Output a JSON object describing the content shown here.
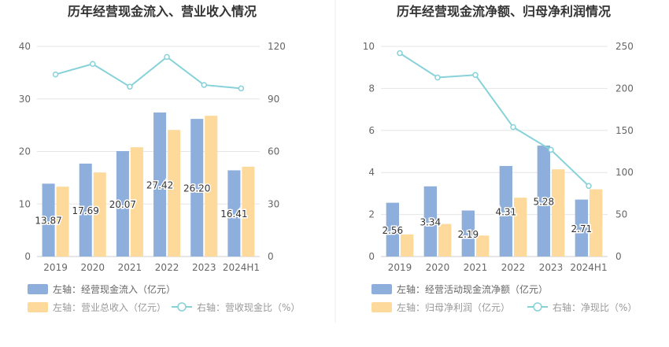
{
  "colors": {
    "bar1": "#8EAEDC",
    "bar2": "#FED99C",
    "line": "#86D2D8",
    "grid": "#E6E6E6",
    "axis_text": "#666666",
    "title": "#333333",
    "divider": "#EEEEEE"
  },
  "chart_data": [
    {
      "type": "bar",
      "title": "历年经营现金流入、营业收入情况",
      "categories": [
        "2019",
        "2020",
        "2021",
        "2022",
        "2023",
        "2024H1"
      ],
      "yleft": {
        "ticks": [
          "0",
          "10",
          "20",
          "30",
          "40"
        ],
        "range": [
          0,
          40
        ]
      },
      "yright": {
        "ticks": [
          "0",
          "30",
          "60",
          "90",
          "120"
        ],
        "range": [
          0,
          120
        ]
      },
      "series": [
        {
          "name": "左轴：经营现金流入（亿元）",
          "kind": "bar",
          "axis": "left",
          "values": [
            13.87,
            17.69,
            20.07,
            27.42,
            26.2,
            16.41
          ],
          "labels": [
            "13.87",
            "17.69",
            "20.07",
            "27.42",
            "26.20",
            "16.41"
          ]
        },
        {
          "name": "左轴：营业总收入（亿元）",
          "kind": "bar",
          "axis": "left",
          "values": [
            13.3,
            16.0,
            20.8,
            24.1,
            26.8,
            17.1
          ]
        },
        {
          "name": "右轴：营收现金比（%）",
          "kind": "line",
          "axis": "right",
          "values": [
            104,
            110,
            97,
            114,
            98,
            96
          ]
        }
      ]
    },
    {
      "type": "bar",
      "title": "历年经营现金流净额、归母净利润情况",
      "categories": [
        "2019",
        "2020",
        "2021",
        "2022",
        "2023",
        "2024H1"
      ],
      "yleft": {
        "ticks": [
          "0",
          "2",
          "4",
          "6",
          "8",
          "10"
        ],
        "range": [
          0,
          10
        ]
      },
      "yright": {
        "ticks": [
          "0",
          "50",
          "100",
          "150",
          "200",
          "250"
        ],
        "range": [
          0,
          250
        ]
      },
      "series": [
        {
          "name": "左轴：经营活动现金流净额（亿元）",
          "kind": "bar",
          "axis": "left",
          "values": [
            2.56,
            3.34,
            2.19,
            4.31,
            5.28,
            2.71
          ],
          "labels": [
            "2.56",
            "3.34",
            "2.19",
            "4.31",
            "5.28",
            "2.71"
          ]
        },
        {
          "name": "左轴：归母净利润（亿元）",
          "kind": "bar",
          "axis": "left",
          "values": [
            1.05,
            1.55,
            1.0,
            2.8,
            4.15,
            3.2
          ]
        },
        {
          "name": "右轴：净现比（%）",
          "kind": "line",
          "axis": "right",
          "values": [
            242,
            213,
            216,
            154,
            127,
            84
          ]
        }
      ]
    }
  ]
}
